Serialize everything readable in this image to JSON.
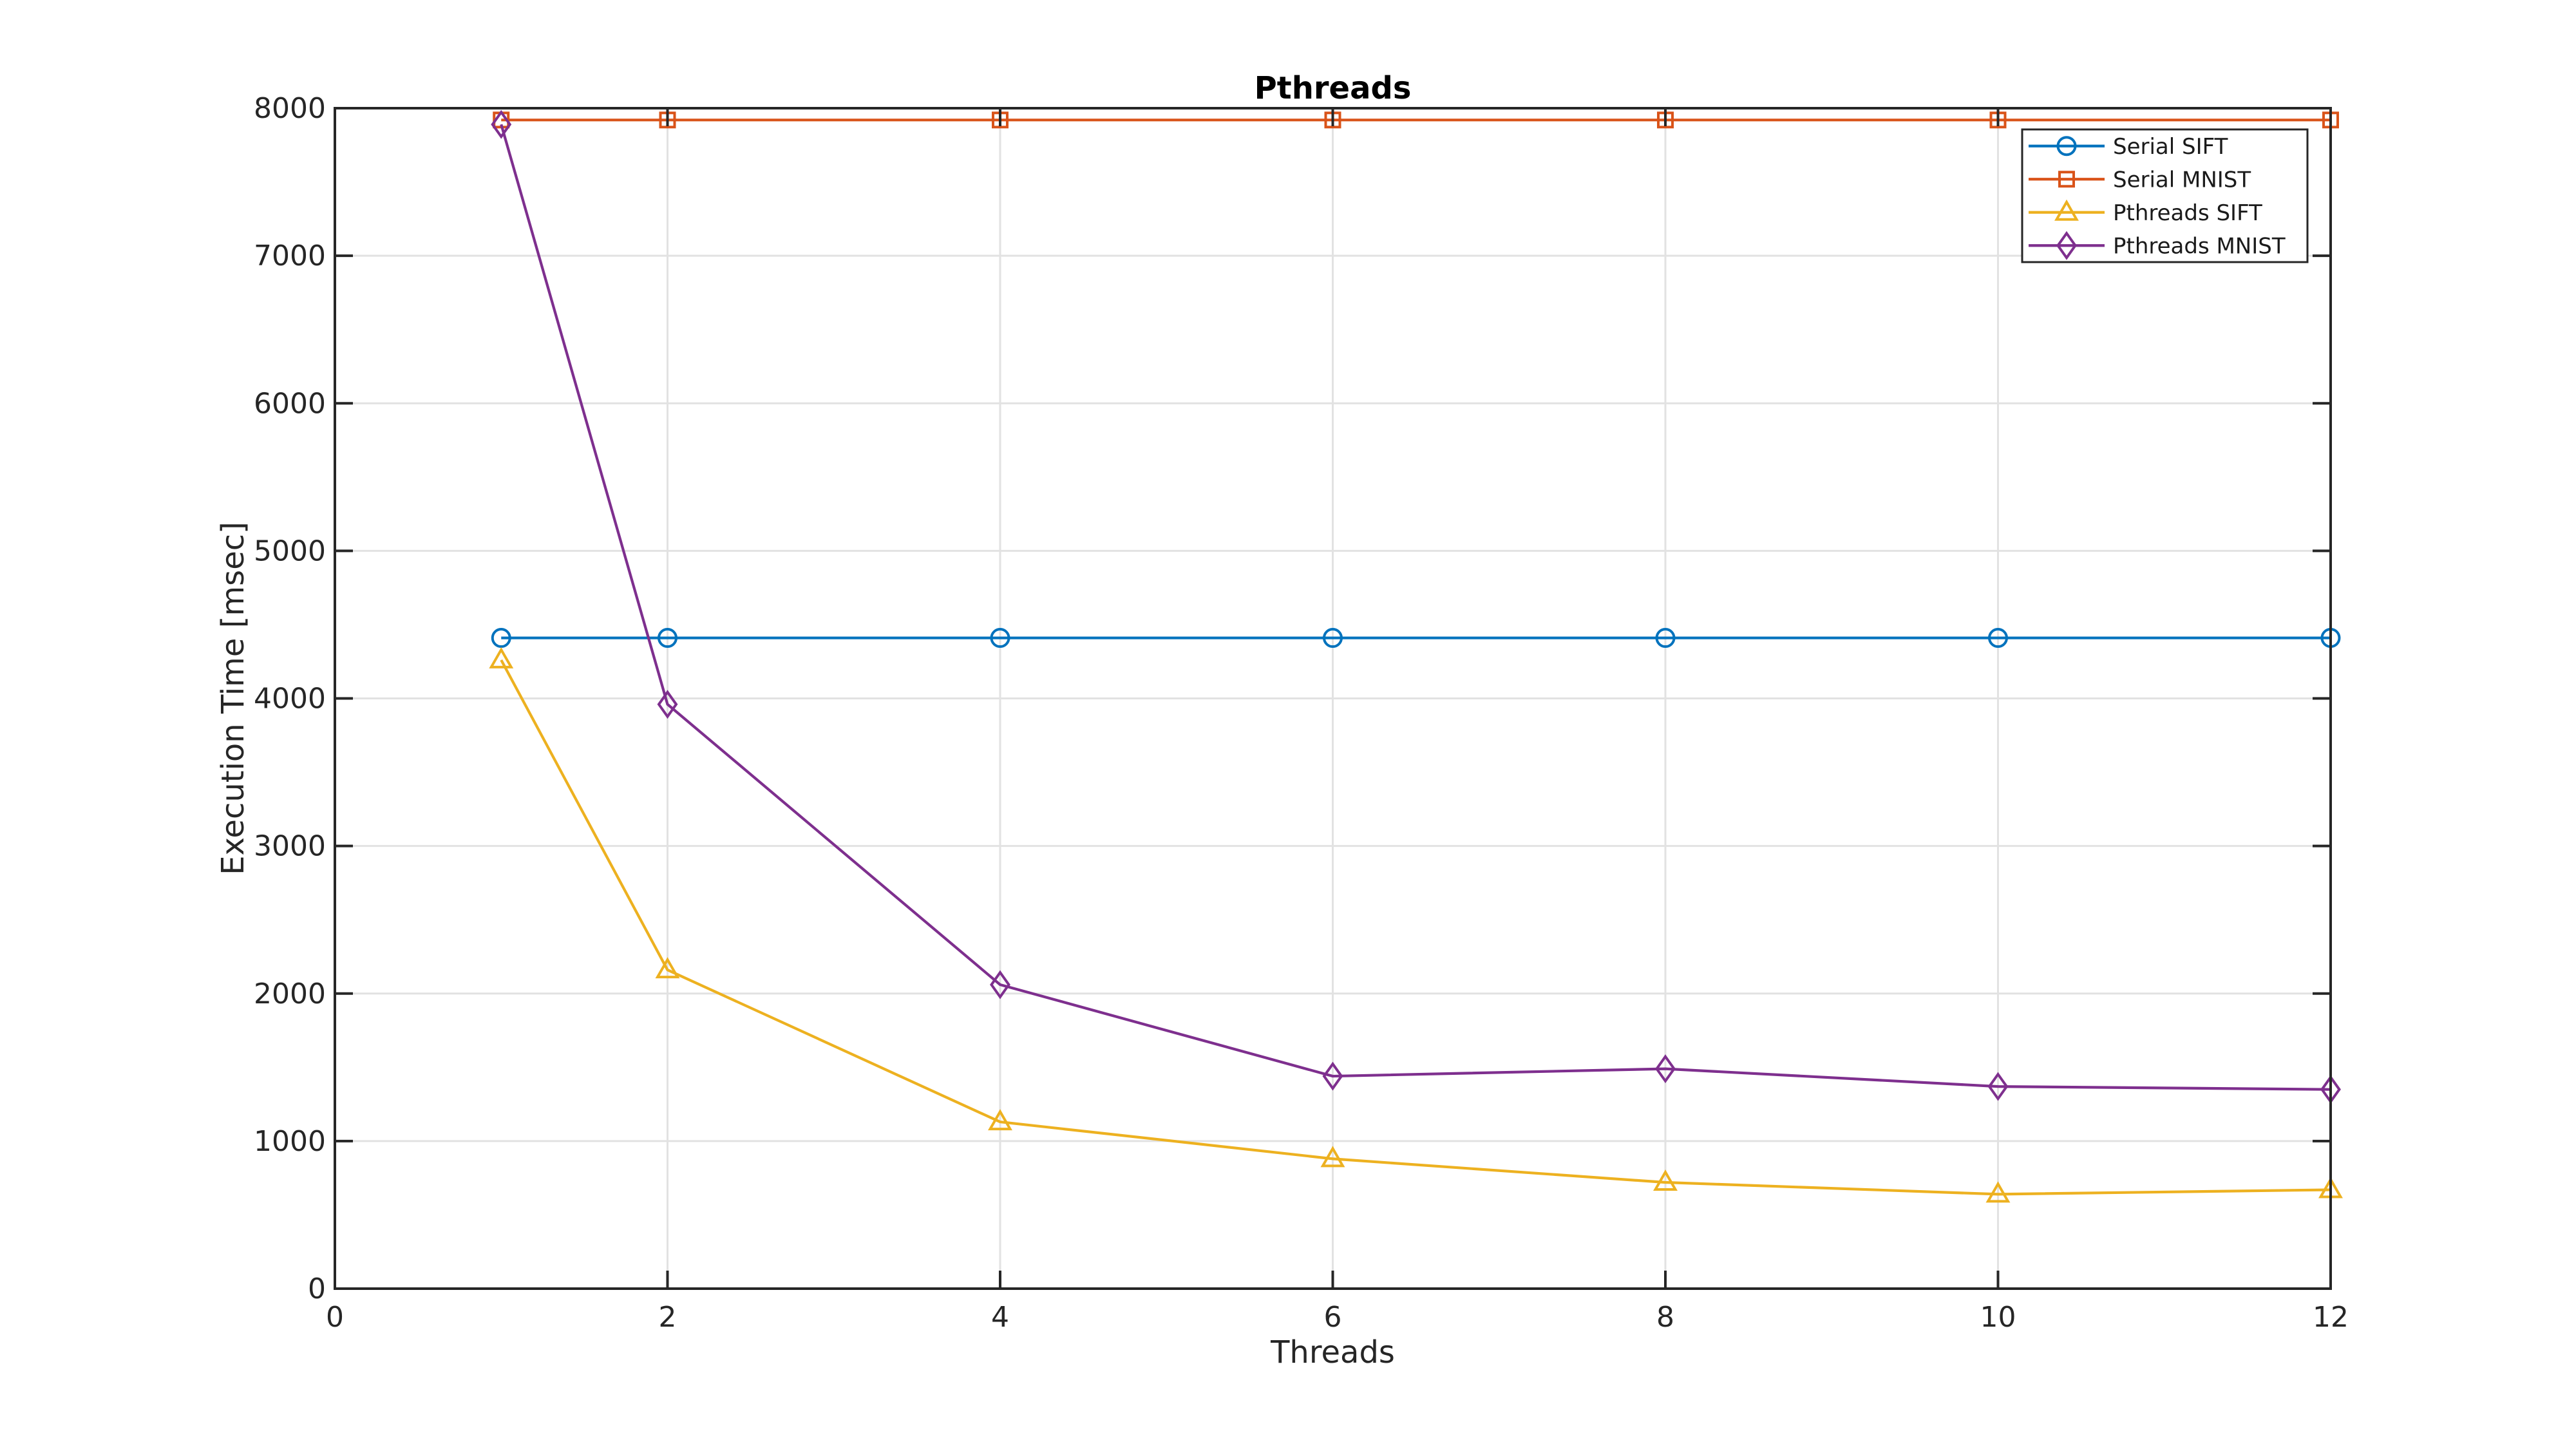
{
  "chart_data": {
    "type": "line",
    "title": "Pthreads",
    "xlabel": "Threads",
    "ylabel": "Execution Time [msec]",
    "xlim": [
      0,
      12
    ],
    "ylim": [
      0,
      8000
    ],
    "xticks": [
      0,
      2,
      4,
      6,
      8,
      10,
      12
    ],
    "yticks": [
      0,
      1000,
      2000,
      3000,
      4000,
      5000,
      6000,
      7000,
      8000
    ],
    "grid": true,
    "legend_position": "top-right",
    "x": [
      1,
      2,
      4,
      6,
      8,
      10,
      12
    ],
    "series": [
      {
        "name": "Serial SIFT",
        "color": "#0072BD",
        "marker": "circle",
        "values": [
          4410,
          4410,
          4410,
          4410,
          4410,
          4410,
          4410
        ]
      },
      {
        "name": "Serial MNIST",
        "color": "#D95319",
        "marker": "square",
        "values": [
          7920,
          7920,
          7920,
          7920,
          7920,
          7920,
          7920
        ]
      },
      {
        "name": "Pthreads SIFT",
        "color": "#EDB120",
        "marker": "triangle",
        "values": [
          4260,
          2160,
          1130,
          880,
          720,
          640,
          670
        ]
      },
      {
        "name": "Pthreads MNIST",
        "color": "#7E2F8E",
        "marker": "diamond",
        "values": [
          7890,
          3960,
          2060,
          1440,
          1490,
          1370,
          1350
        ]
      }
    ],
    "axis_color": "#262626",
    "grid_color": "#e2e2e2",
    "background_color": "#ffffff"
  }
}
